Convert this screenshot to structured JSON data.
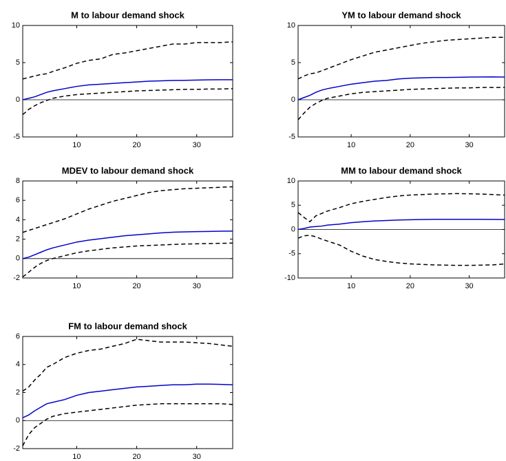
{
  "chart_data": [
    {
      "type": "line",
      "title": "M to labour demand shock",
      "x": [
        1,
        2,
        3,
        4,
        5,
        6,
        8,
        10,
        12,
        14,
        16,
        18,
        20,
        22,
        24,
        26,
        28,
        30,
        32,
        34,
        36
      ],
      "xlim": [
        1,
        36
      ],
      "xticks": [
        10,
        20,
        30
      ],
      "ylim": [
        -5,
        10
      ],
      "yticks": [
        -5,
        0,
        5,
        10
      ],
      "hline": 0,
      "series": [
        {
          "color": "#0000cc",
          "line_style": "solid",
          "values": [
            0,
            0.2,
            0.4,
            0.7,
            1.0,
            1.2,
            1.5,
            1.8,
            2.0,
            2.1,
            2.2,
            2.3,
            2.4,
            2.5,
            2.55,
            2.6,
            2.62,
            2.65,
            2.68,
            2.7,
            2.7
          ]
        },
        {
          "color": "#000000",
          "line_style": "dashed",
          "values": [
            2.8,
            3.0,
            3.2,
            3.4,
            3.5,
            3.8,
            4.3,
            4.9,
            5.3,
            5.5,
            6.1,
            6.3,
            6.6,
            6.9,
            7.2,
            7.5,
            7.5,
            7.7,
            7.7,
            7.7,
            7.8
          ]
        },
        {
          "color": "#000000",
          "line_style": "dashed",
          "values": [
            -2.0,
            -1.3,
            -0.8,
            -0.4,
            -0.1,
            0.2,
            0.5,
            0.7,
            0.8,
            0.9,
            1.0,
            1.1,
            1.2,
            1.25,
            1.3,
            1.35,
            1.4,
            1.4,
            1.45,
            1.45,
            1.5
          ]
        }
      ]
    },
    {
      "type": "line",
      "title": "YM to labour demand shock",
      "x": [
        1,
        2,
        3,
        4,
        5,
        6,
        8,
        10,
        12,
        14,
        16,
        18,
        20,
        22,
        24,
        26,
        28,
        30,
        32,
        34,
        36
      ],
      "xlim": [
        1,
        36
      ],
      "xticks": [
        10,
        20,
        30
      ],
      "ylim": [
        -5,
        10
      ],
      "yticks": [
        -5,
        0,
        5,
        10
      ],
      "hline": 0,
      "series": [
        {
          "color": "#0000cc",
          "line_style": "solid",
          "values": [
            0,
            0.3,
            0.6,
            1.0,
            1.3,
            1.5,
            1.8,
            2.1,
            2.3,
            2.5,
            2.6,
            2.8,
            2.9,
            2.95,
            3.0,
            3.0,
            3.02,
            3.05,
            3.07,
            3.08,
            3.05
          ]
        },
        {
          "color": "#000000",
          "line_style": "dashed",
          "values": [
            2.8,
            3.2,
            3.5,
            3.6,
            3.9,
            4.2,
            4.8,
            5.4,
            5.9,
            6.4,
            6.7,
            7.0,
            7.3,
            7.6,
            7.8,
            8.0,
            8.1,
            8.2,
            8.3,
            8.4,
            8.4
          ]
        },
        {
          "color": "#000000",
          "line_style": "dashed",
          "values": [
            -2.7,
            -1.8,
            -1.0,
            -0.5,
            -0.1,
            0.2,
            0.5,
            0.8,
            1.0,
            1.1,
            1.2,
            1.3,
            1.4,
            1.45,
            1.5,
            1.55,
            1.6,
            1.6,
            1.65,
            1.65,
            1.65
          ]
        }
      ]
    },
    {
      "type": "line",
      "title": "MDEV to labour demand shock",
      "x": [
        1,
        2,
        3,
        4,
        5,
        6,
        8,
        10,
        12,
        14,
        16,
        18,
        20,
        22,
        24,
        26,
        28,
        30,
        32,
        34,
        36
      ],
      "xlim": [
        1,
        36
      ],
      "xticks": [
        10,
        20,
        30
      ],
      "ylim": [
        -2,
        8
      ],
      "yticks": [
        -2,
        0,
        2,
        4,
        6,
        8
      ],
      "hline": 0,
      "series": [
        {
          "color": "#0000cc",
          "line_style": "solid",
          "values": [
            0,
            0.15,
            0.4,
            0.65,
            0.9,
            1.1,
            1.4,
            1.7,
            1.9,
            2.05,
            2.2,
            2.35,
            2.45,
            2.55,
            2.65,
            2.72,
            2.75,
            2.78,
            2.8,
            2.82,
            2.83
          ]
        },
        {
          "color": "#000000",
          "line_style": "dashed",
          "values": [
            2.7,
            2.9,
            3.1,
            3.3,
            3.5,
            3.7,
            4.1,
            4.6,
            5.1,
            5.5,
            5.9,
            6.2,
            6.5,
            6.8,
            7.0,
            7.1,
            7.2,
            7.25,
            7.3,
            7.35,
            7.4
          ]
        },
        {
          "color": "#000000",
          "line_style": "dashed",
          "values": [
            -1.9,
            -1.4,
            -0.9,
            -0.5,
            -0.2,
            0.0,
            0.3,
            0.6,
            0.8,
            0.95,
            1.1,
            1.2,
            1.3,
            1.35,
            1.4,
            1.45,
            1.5,
            1.52,
            1.55,
            1.57,
            1.6
          ]
        }
      ]
    },
    {
      "type": "line",
      "title": "MM to labour demand shock",
      "x": [
        1,
        2,
        3,
        4,
        5,
        6,
        8,
        10,
        12,
        14,
        16,
        18,
        20,
        22,
        24,
        26,
        28,
        30,
        32,
        34,
        36
      ],
      "xlim": [
        1,
        36
      ],
      "xticks": [
        10,
        20,
        30
      ],
      "ylim": [
        -10,
        10
      ],
      "yticks": [
        -10,
        -5,
        0,
        5,
        10
      ],
      "hline": 0,
      "series": [
        {
          "color": "#0000cc",
          "line_style": "solid",
          "values": [
            0,
            0.2,
            0.5,
            0.6,
            0.7,
            0.9,
            1.1,
            1.4,
            1.6,
            1.75,
            1.85,
            1.95,
            2.0,
            2.05,
            2.1,
            2.1,
            2.1,
            2.1,
            2.1,
            2.08,
            2.05
          ]
        },
        {
          "color": "#000000",
          "line_style": "dashed",
          "values": [
            3.5,
            2.5,
            1.6,
            2.8,
            3.3,
            3.8,
            4.5,
            5.3,
            5.8,
            6.2,
            6.6,
            6.9,
            7.1,
            7.2,
            7.3,
            7.35,
            7.4,
            7.35,
            7.3,
            7.2,
            7.1
          ]
        },
        {
          "color": "#000000",
          "line_style": "dashed",
          "values": [
            -1.8,
            -1.3,
            -1.2,
            -1.5,
            -2.0,
            -2.4,
            -3.2,
            -4.5,
            -5.5,
            -6.2,
            -6.6,
            -6.9,
            -7.1,
            -7.2,
            -7.3,
            -7.35,
            -7.4,
            -7.4,
            -7.35,
            -7.3,
            -7.1
          ]
        }
      ]
    },
    {
      "type": "line",
      "title": "FM to labour demand shock",
      "x": [
        1,
        2,
        3,
        4,
        5,
        6,
        8,
        10,
        12,
        14,
        16,
        18,
        20,
        22,
        24,
        26,
        28,
        30,
        32,
        34,
        36
      ],
      "xlim": [
        1,
        36
      ],
      "xticks": [
        10,
        20,
        30
      ],
      "ylim": [
        -2,
        6
      ],
      "yticks": [
        -2,
        0,
        2,
        4,
        6
      ],
      "hline": 0,
      "series": [
        {
          "color": "#0000cc",
          "line_style": "solid",
          "values": [
            0.2,
            0.4,
            0.7,
            0.95,
            1.2,
            1.3,
            1.5,
            1.8,
            2.0,
            2.1,
            2.2,
            2.3,
            2.4,
            2.45,
            2.5,
            2.55,
            2.55,
            2.6,
            2.6,
            2.58,
            2.55
          ]
        },
        {
          "color": "#000000",
          "line_style": "dashed",
          "values": [
            2.1,
            2.4,
            2.9,
            3.3,
            3.8,
            4.0,
            4.5,
            4.8,
            5.0,
            5.1,
            5.3,
            5.5,
            5.8,
            5.7,
            5.6,
            5.6,
            5.6,
            5.55,
            5.5,
            5.4,
            5.3
          ]
        },
        {
          "color": "#000000",
          "line_style": "dashed",
          "values": [
            -1.8,
            -1.0,
            -0.5,
            -0.2,
            0.1,
            0.3,
            0.5,
            0.6,
            0.7,
            0.8,
            0.9,
            1.0,
            1.1,
            1.15,
            1.2,
            1.2,
            1.2,
            1.2,
            1.2,
            1.2,
            1.15
          ]
        }
      ]
    }
  ]
}
